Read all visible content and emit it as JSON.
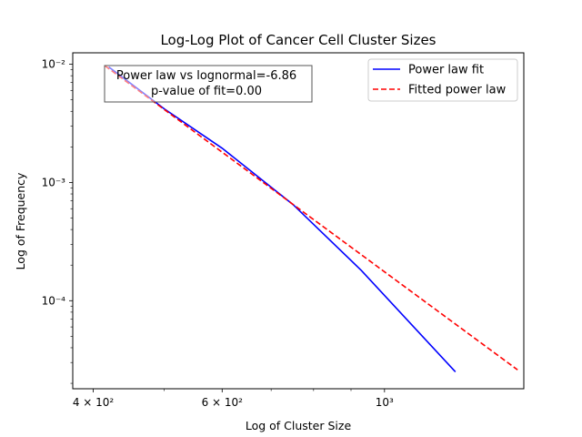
{
  "chart_data": {
    "type": "line",
    "title": "Log-Log Plot of Cancer Cell Cluster Sizes",
    "xlabel": "Log of Cluster Size",
    "ylabel": "Log of Frequency",
    "xscale": "log",
    "yscale": "log",
    "xlim": [
      375,
      1550
    ],
    "ylim": [
      1.8e-05,
      0.0125
    ],
    "x_major_ticks": [
      {
        "value": 400,
        "label": "4 × 10²"
      },
      {
        "value": 600,
        "label": "6 × 10²"
      },
      {
        "value": 1000,
        "label": "10³"
      }
    ],
    "x_minor_ticks": [
      500,
      700,
      800,
      900
    ],
    "y_major_ticks": [
      {
        "value": 0.0001,
        "label": "10⁻⁴"
      },
      {
        "value": 0.001,
        "label": "10⁻³"
      },
      {
        "value": 0.01,
        "label": "10⁻²"
      }
    ],
    "grid": false,
    "legend_position": "top-right",
    "series": [
      {
        "name": "Power law fit",
        "color": "#0000ff",
        "linestyle": "solid",
        "x": [
          420,
          500,
          600,
          750,
          930,
          1250
        ],
        "y": [
          0.0095,
          0.0042,
          0.00195,
          0.00065,
          0.00018,
          2.5e-05
        ]
      },
      {
        "name": "Fitted power law",
        "color": "#ff0000",
        "linestyle": "dashed",
        "x": [
          415,
          1520
        ],
        "y": [
          0.0097,
          2.6e-05
        ]
      }
    ],
    "annotation": {
      "lines": [
        "Power law vs lognormal=-6.86",
        "p-value of fit=0.00"
      ]
    }
  }
}
